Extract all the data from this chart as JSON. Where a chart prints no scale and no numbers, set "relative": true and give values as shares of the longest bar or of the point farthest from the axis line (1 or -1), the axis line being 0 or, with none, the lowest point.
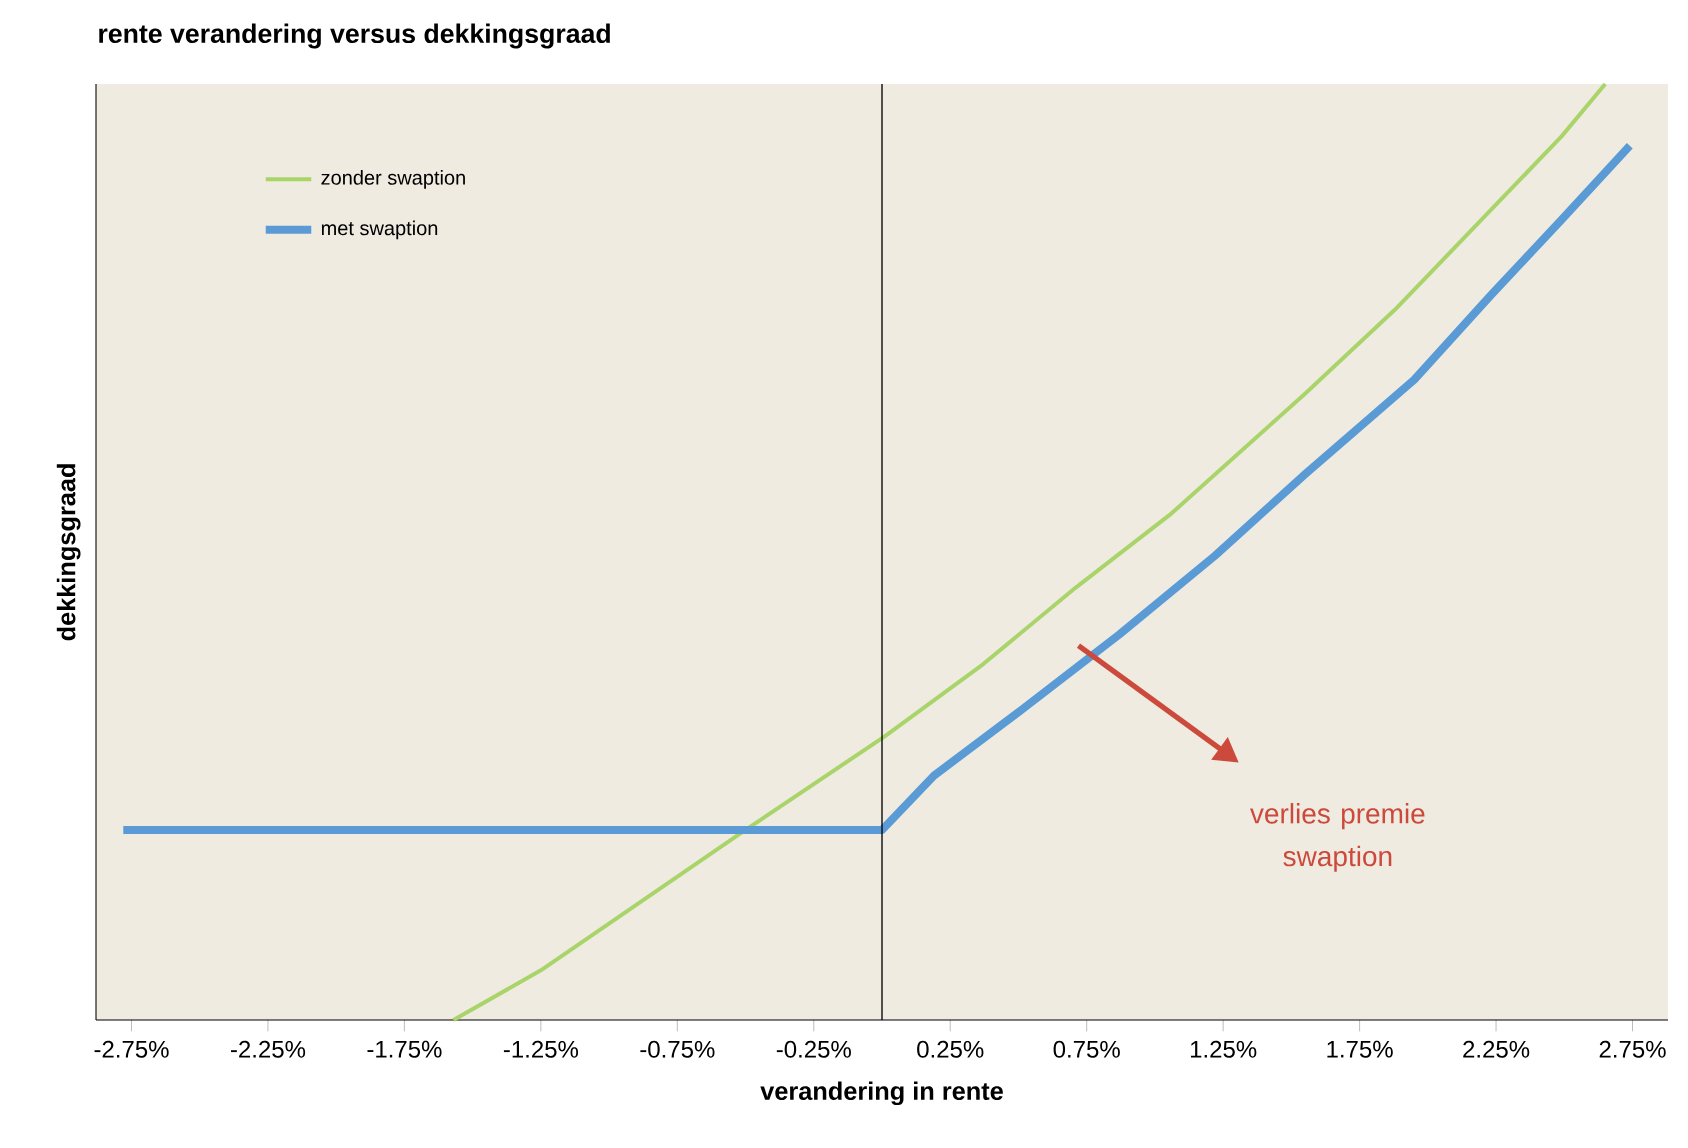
{
  "chart_data": {
    "type": "line",
    "title": "rente verandering versus dekkingsgraad",
    "xlabel": "verandering in rente",
    "ylabel": "dekkingsgraad",
    "relative": true,
    "xlim": [
      -2.88,
      2.88
    ],
    "xticks": [
      {
        "value": -2.75,
        "label": "-2.75%"
      },
      {
        "value": -2.25,
        "label": "-2.25%"
      },
      {
        "value": -1.75,
        "label": "-1.75%"
      },
      {
        "value": -1.25,
        "label": "-1.25%"
      },
      {
        "value": -0.75,
        "label": "-0.75%"
      },
      {
        "value": -0.25,
        "label": "-0.25%"
      },
      {
        "value": 0.25,
        "label": "0.25%"
      },
      {
        "value": 0.75,
        "label": "0.75%"
      },
      {
        "value": 1.25,
        "label": "1.25%"
      },
      {
        "value": 1.75,
        "label": "1.75%"
      },
      {
        "value": 2.25,
        "label": "2.25%"
      },
      {
        "value": 2.75,
        "label": "2.75%"
      }
    ],
    "series": [
      {
        "name": "zonder swaption",
        "color": "#a9d46a",
        "x": [
          -1.57,
          -1.25,
          -0.5,
          0.01,
          0.37,
          0.71,
          1.06,
          1.55,
          1.88,
          2.21,
          2.49,
          2.65
        ],
        "values": [
          0,
          0.053,
          0.203,
          0.303,
          0.38,
          0.462,
          0.541,
          0.669,
          0.759,
          0.859,
          0.944,
          1
        ]
      },
      {
        "name": "met swaption",
        "color": "#5b9bd5",
        "x": [
          -2.78,
          0,
          0.19,
          0.51,
          0.87,
          1.22,
          1.55,
          1.95,
          2.23,
          2.49,
          2.74
        ],
        "values": [
          0.203,
          0.203,
          0.261,
          0.331,
          0.412,
          0.496,
          0.583,
          0.684,
          0.774,
          0.855,
          0.934
        ]
      }
    ],
    "ref_lines": [
      {
        "axis": "x",
        "value": 0,
        "color": "#000000"
      }
    ],
    "annotations": [
      "verlies premie swaption"
    ],
    "legend": "top left",
    "grid": false,
    "marker": "none",
    "line_style": "solid"
  }
}
